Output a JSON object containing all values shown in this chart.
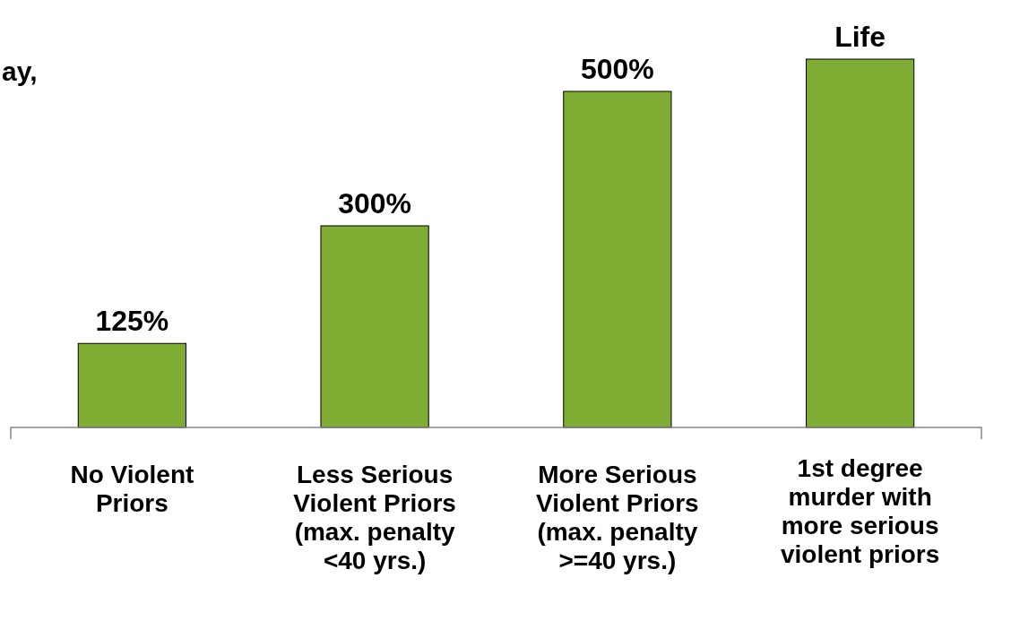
{
  "chart_data": {
    "type": "bar",
    "categories": [
      "No Violent\nPriors",
      "Less Serious\nViolent Priors\n(max. penalty\n<40 yrs.)",
      "More Serious\nViolent Priors\n(max. penalty\n>=40 yrs.)",
      "1st degree\nmurder with\nmore serious\nviolent priors"
    ],
    "values": [
      125,
      300,
      500,
      548
    ],
    "value_labels": [
      "125%",
      "300%",
      "500%",
      "Life"
    ],
    "color": "#7fad33",
    "annotations": [
      "ay,"
    ]
  }
}
